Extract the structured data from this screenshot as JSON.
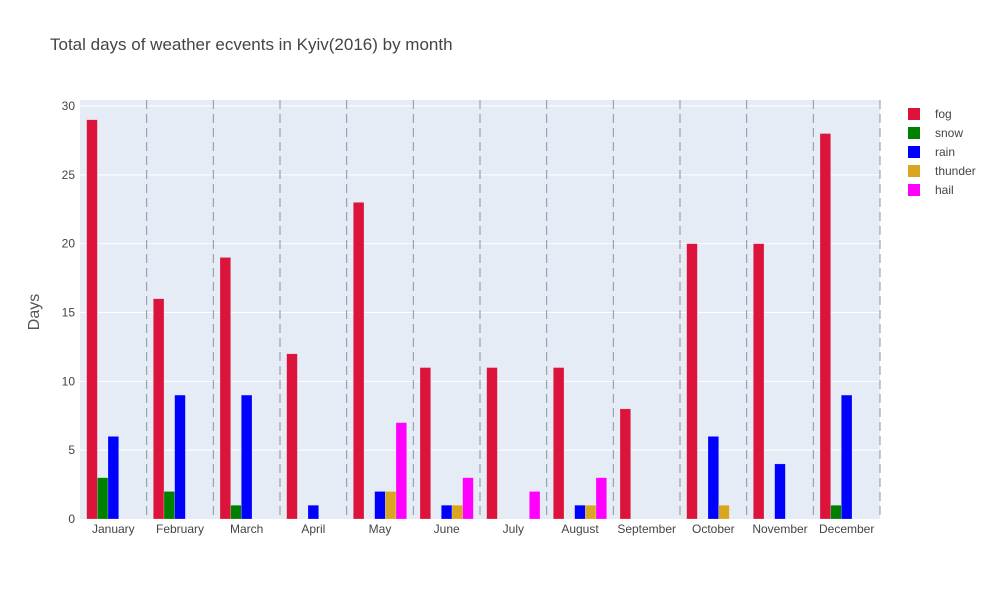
{
  "chart_data": {
    "type": "bar",
    "title": "Total days of weather ecvents in Kyiv(2016) by month",
    "xlabel": "",
    "ylabel": "Days",
    "ylim": [
      0,
      30
    ],
    "yticks": [
      0,
      5,
      10,
      15,
      20,
      25,
      30
    ],
    "grid": true,
    "legend_placement": "top-right",
    "categories": [
      "January",
      "February",
      "March",
      "April",
      "May",
      "June",
      "July",
      "August",
      "September",
      "October",
      "November",
      "December"
    ],
    "series": [
      {
        "name": "fog",
        "color": "#dc143c",
        "values": [
          29,
          16,
          19,
          12,
          23,
          11,
          11,
          11,
          8,
          20,
          20,
          28
        ]
      },
      {
        "name": "snow",
        "color": "#008000",
        "values": [
          3,
          2,
          1,
          0,
          0,
          0,
          0,
          0,
          0,
          0,
          0,
          1
        ]
      },
      {
        "name": "rain",
        "color": "#0000ff",
        "values": [
          6,
          9,
          9,
          1,
          2,
          1,
          0,
          1,
          0,
          6,
          4,
          9
        ]
      },
      {
        "name": "thunder",
        "color": "#daa520",
        "values": [
          0,
          0,
          0,
          0,
          2,
          1,
          0,
          1,
          0,
          1,
          0,
          0
        ]
      },
      {
        "name": "hail",
        "color": "#ff00ff",
        "values": [
          0,
          0,
          0,
          0,
          7,
          3,
          2,
          3,
          0,
          0,
          0,
          0
        ]
      }
    ]
  }
}
